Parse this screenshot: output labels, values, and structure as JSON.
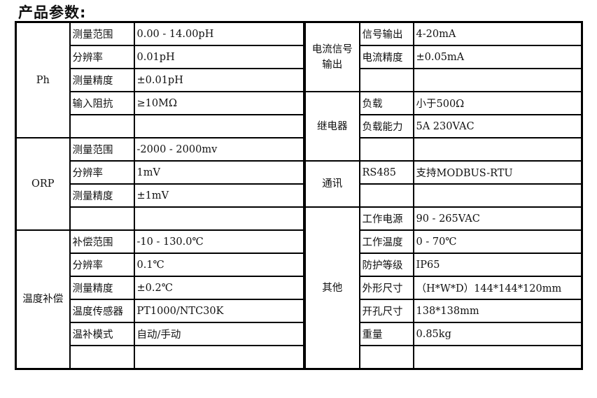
{
  "title": "产品参数:",
  "left_groups": [
    {
      "name": "Ph",
      "rows": [
        {
          "label": "测量范围",
          "value": " 0.00 - 14.00pH"
        },
        {
          "label": "分辨率",
          "value": "0.01pH"
        },
        {
          "label": "测量精度",
          "value": "±0.01pH"
        },
        {
          "label": "输入阻抗",
          "value": "≥10MΩ"
        },
        {
          "label": "",
          "value": ""
        }
      ]
    },
    {
      "name": "ORP",
      "rows": [
        {
          "label": "测量范围",
          "value": " -2000 - 2000mv"
        },
        {
          "label": "分辨率",
          "value": "1mV"
        },
        {
          "label": "测量精度",
          "value": "±1mV"
        },
        {
          "label": "",
          "value": ""
        }
      ]
    },
    {
      "name": "温度补偿",
      "rows": [
        {
          "label": "补偿范围",
          "value": " -10 - 130.0℃"
        },
        {
          "label": "分辨率",
          "value": "0.1℃"
        },
        {
          "label": "测量精度",
          "value": "±0.2℃"
        },
        {
          "label": "温度传感器",
          "value": "PT1000/NTC30K"
        },
        {
          "label": "温补模式",
          "value": "自动/手动"
        },
        {
          "label": "",
          "value": ""
        }
      ]
    }
  ],
  "right_groups": [
    {
      "name": "电流信号输出",
      "rows": [
        {
          "label": "信号输出",
          "value": "4-20mA"
        },
        {
          "label": "电流精度",
          "value": "±0.05mA"
        },
        {
          "label": "",
          "value": ""
        }
      ]
    },
    {
      "name": "继电器",
      "rows": [
        {
          "label": "负载",
          "value": "小于500Ω"
        },
        {
          "label": "负载能力",
          "value": "5A 230VAC"
        },
        {
          "label": "",
          "value": ""
        }
      ]
    },
    {
      "name": "通讯",
      "rows": [
        {
          "label": "RS485",
          "value": "支持MODBUS-RTU"
        },
        {
          "label": "",
          "value": ""
        }
      ]
    },
    {
      "name": "其他",
      "rows": [
        {
          "label": "工作电源",
          "value": "90 - 265VAC"
        },
        {
          "label": "工作温度",
          "value": "0 - 70℃"
        },
        {
          "label": "防护等级",
          "value": "IP65"
        },
        {
          "label": "外形尺寸",
          "value": "（H*W*D）144*144*120mm"
        },
        {
          "label": "开孔尺寸",
          "value": "138*138mm"
        },
        {
          "label": "重量",
          "value": "0.85kg"
        },
        {
          "label": "",
          "value": ""
        }
      ]
    }
  ]
}
